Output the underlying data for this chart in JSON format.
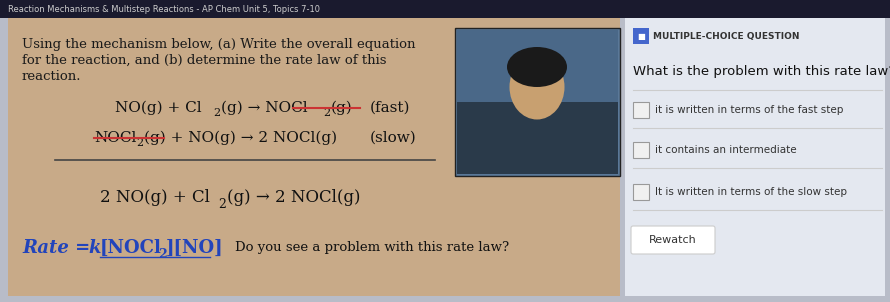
{
  "title_bar": "Reaction Mechanisms & Multistep Reactions - AP Chem Unit 5, Topics 7-10",
  "title_bar_bg": "#1a1a2e",
  "title_bar_color": "#cccccc",
  "title_bar_fontsize": 6.0,
  "outer_bg": "#b8bcc8",
  "left_bg": "#c8aa88",
  "right_bg": "#e4e8f0",
  "prompt_color": "#1a1a1a",
  "rate_color": "#2244bb",
  "strike_color": "#cc3333",
  "mcq_label": "MULTIPLE-CHOICE QUESTION",
  "mcq_icon_color": "#4466cc",
  "mcq_question": "What is the problem with this rate law?",
  "mcq_options": [
    "it is written in terms of the fast step",
    "it contains an intermediate",
    "It is written in terms of the slow step"
  ],
  "mcq_rewatch": "Rewatch",
  "do_you_see": "Do you see a problem with this rate law?"
}
